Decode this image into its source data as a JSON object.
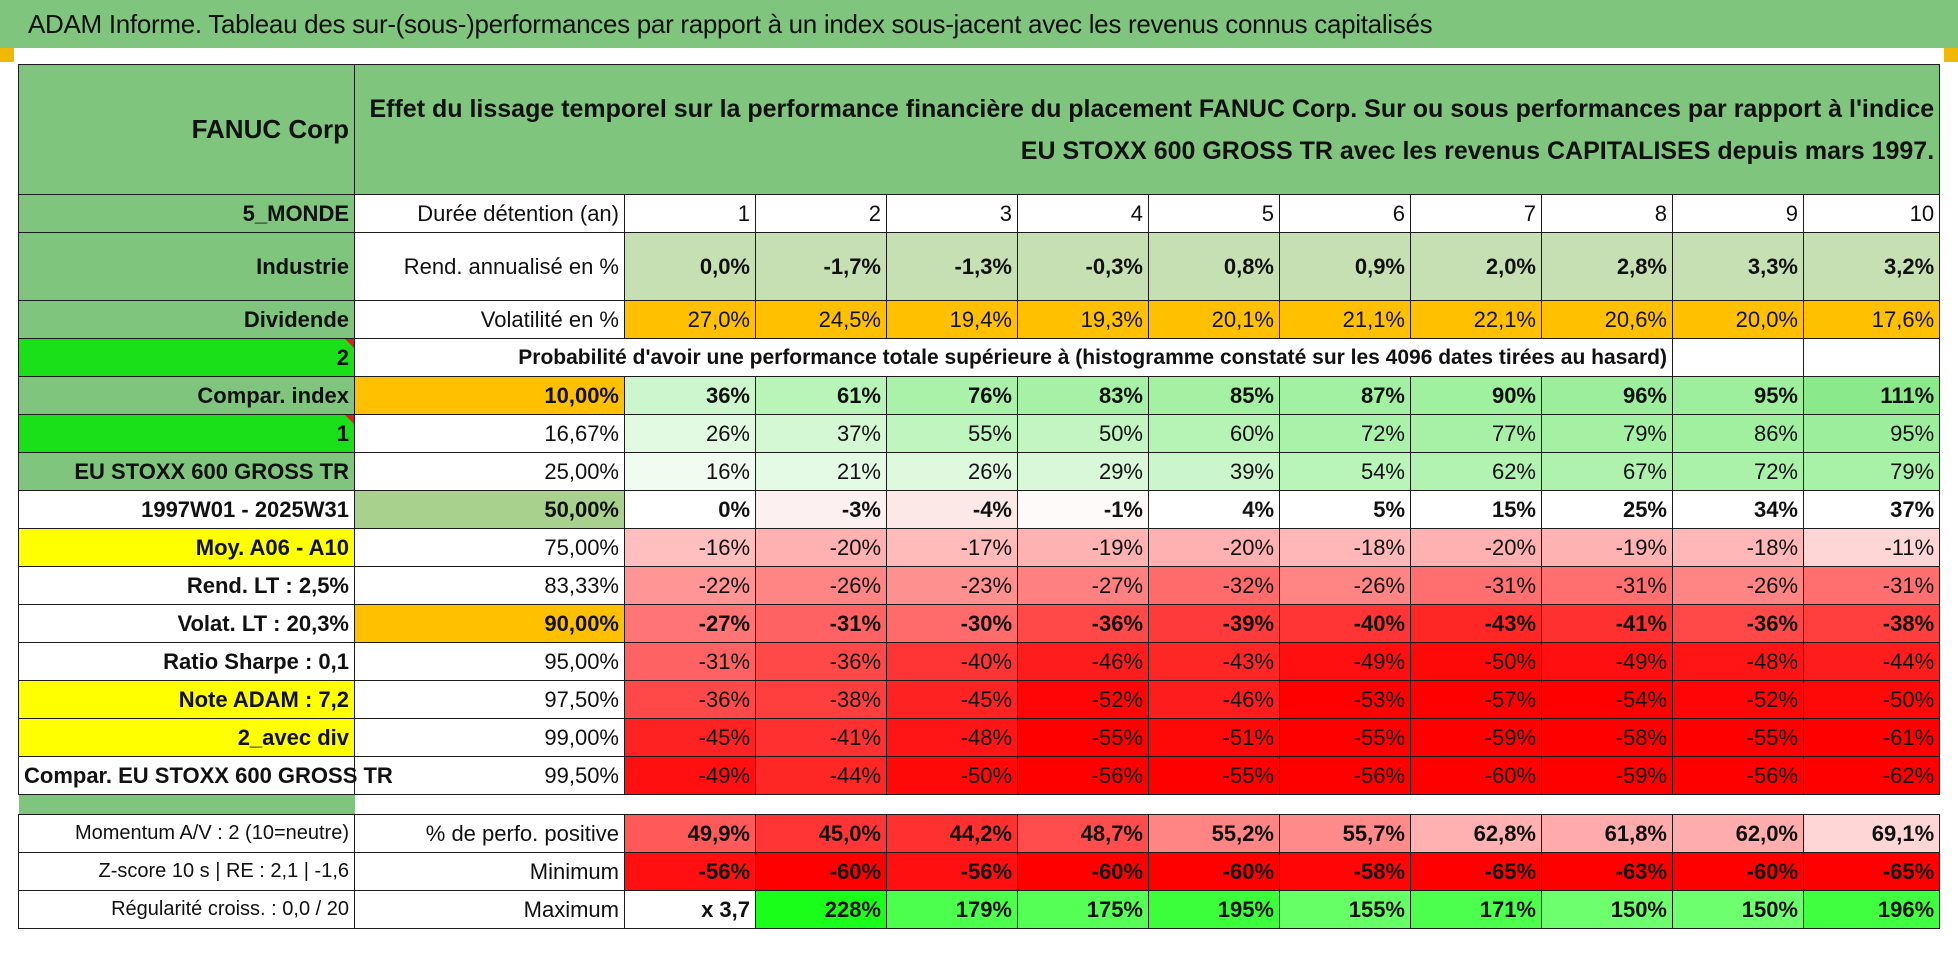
{
  "header": {
    "title": "ADAM Informe. Tableau des sur-(sous-)performances par rapport à un index sous-jacent avec les revenus connus capitalisés"
  },
  "table": {
    "company": "FANUC Corp",
    "description": "Effet du lissage temporel sur la performance financière du placement FANUC Corp. Sur ou sous performances par rapport à l'indice EU STOXX 600 GROSS TR avec les revenus CAPITALISES depuis mars 1997.",
    "left_labels": [
      "5_MONDE",
      "Industrie",
      "Dividende",
      "2",
      "Compar. index",
      "1",
      "EU STOXX 600 GROSS TR",
      "1997W01 - 2025W31",
      "Moy. A06 - A10",
      "Rend. LT :    2,5%",
      "Volat. LT :    20,3%",
      "Ratio Sharpe :    0,1",
      "Note ADAM : 7,2",
      "2_avec div",
      "Compar. EU STOXX 600 GROSS TR"
    ],
    "holding_label": "Durée détention (an)",
    "years": [
      "1",
      "2",
      "3",
      "4",
      "5",
      "6",
      "7",
      "8",
      "9",
      "10"
    ],
    "rend_label": "Rend. annualisé en %",
    "rend": [
      "0,0%",
      "-1,7%",
      "-1,3%",
      "-0,3%",
      "0,8%",
      "0,9%",
      "2,0%",
      "2,8%",
      "3,3%",
      "3,2%"
    ],
    "vol_label": "Volatilité en %",
    "vol": [
      "27,0%",
      "24,5%",
      "19,4%",
      "19,3%",
      "20,1%",
      "21,1%",
      "22,1%",
      "20,6%",
      "20,0%",
      "17,6%"
    ],
    "prob_label": "Probabilité d'avoir une performance totale supérieure à (histogramme constaté sur les 4096 dates tirées au hasard)",
    "pct_rows": [
      {
        "pct": "10,00%",
        "vals": [
          "36%",
          "61%",
          "76%",
          "83%",
          "85%",
          "87%",
          "90%",
          "96%",
          "95%",
          "111%"
        ]
      },
      {
        "pct": "16,67%",
        "vals": [
          "26%",
          "37%",
          "55%",
          "50%",
          "60%",
          "72%",
          "77%",
          "79%",
          "86%",
          "95%"
        ]
      },
      {
        "pct": "25,00%",
        "vals": [
          "16%",
          "21%",
          "26%",
          "29%",
          "39%",
          "54%",
          "62%",
          "67%",
          "72%",
          "79%"
        ]
      },
      {
        "pct": "50,00%",
        "vals": [
          "0%",
          "-3%",
          "-4%",
          "-1%",
          "4%",
          "5%",
          "15%",
          "25%",
          "34%",
          "37%"
        ]
      },
      {
        "pct": "75,00%",
        "vals": [
          "-16%",
          "-20%",
          "-17%",
          "-19%",
          "-20%",
          "-18%",
          "-20%",
          "-19%",
          "-18%",
          "-11%"
        ]
      },
      {
        "pct": "83,33%",
        "vals": [
          "-22%",
          "-26%",
          "-23%",
          "-27%",
          "-32%",
          "-26%",
          "-31%",
          "-31%",
          "-26%",
          "-31%"
        ]
      },
      {
        "pct": "90,00%",
        "vals": [
          "-27%",
          "-31%",
          "-30%",
          "-36%",
          "-39%",
          "-40%",
          "-43%",
          "-41%",
          "-36%",
          "-38%"
        ]
      },
      {
        "pct": "95,00%",
        "vals": [
          "-31%",
          "-36%",
          "-40%",
          "-46%",
          "-43%",
          "-49%",
          "-50%",
          "-49%",
          "-48%",
          "-44%"
        ]
      },
      {
        "pct": "97,50%",
        "vals": [
          "-36%",
          "-38%",
          "-45%",
          "-52%",
          "-46%",
          "-53%",
          "-57%",
          "-54%",
          "-52%",
          "-50%"
        ]
      },
      {
        "pct": "99,00%",
        "vals": [
          "-45%",
          "-41%",
          "-48%",
          "-55%",
          "-51%",
          "-55%",
          "-59%",
          "-58%",
          "-55%",
          "-61%"
        ]
      },
      {
        "pct": "99,50%",
        "vals": [
          "-49%",
          "-44%",
          "-50%",
          "-56%",
          "-55%",
          "-56%",
          "-60%",
          "-59%",
          "-56%",
          "-62%"
        ]
      }
    ],
    "bottom_rows": [
      {
        "left": "Momentum A/V : 2 (10=neutre)",
        "label": "% de perfo. positive",
        "vals": [
          "49,9%",
          "45,0%",
          "44,2%",
          "48,7%",
          "55,2%",
          "55,7%",
          "62,8%",
          "61,8%",
          "62,0%",
          "69,1%"
        ]
      },
      {
        "left": "Z-score 10 s | RE : 2,1 | -1,6",
        "label": "Minimum",
        "vals": [
          "-56%",
          "-60%",
          "-56%",
          "-60%",
          "-60%",
          "-58%",
          "-65%",
          "-63%",
          "-60%",
          "-65%"
        ]
      },
      {
        "left": "Régularité croiss. : 0,0 / 20",
        "label": "Maximum",
        "vals": [
          "x 3,7",
          "228%",
          "179%",
          "175%",
          "195%",
          "155%",
          "171%",
          "150%",
          "150%",
          "196%"
        ]
      }
    ]
  }
}
